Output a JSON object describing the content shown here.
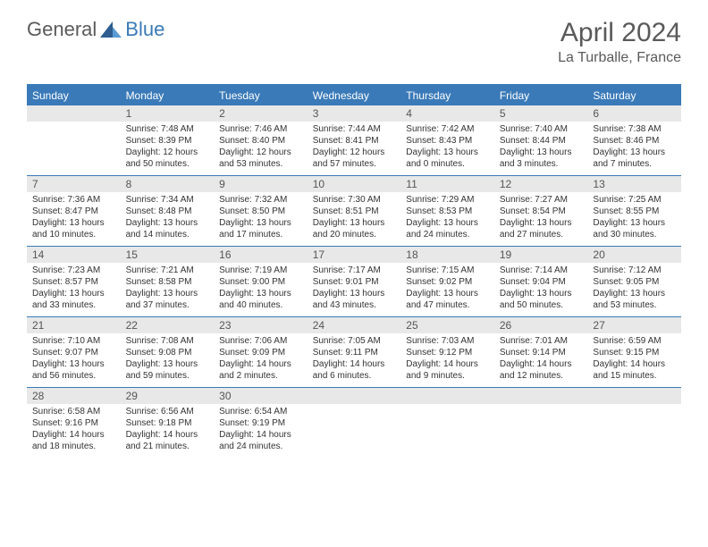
{
  "logo": {
    "general": "General",
    "blue": "Blue"
  },
  "title": "April 2024",
  "location": "La Turballe, France",
  "colors": {
    "accent": "#3a7ab8",
    "header_text": "#ffffff",
    "daynum_bg": "#e8e8e8",
    "body_text": "#333333",
    "title_text": "#5a5a5a"
  },
  "font_sizes": {
    "title": 30,
    "subtitle": 16,
    "day_header": 12,
    "daynum": 12,
    "cell": 10
  },
  "day_names": [
    "Sunday",
    "Monday",
    "Tuesday",
    "Wednesday",
    "Thursday",
    "Friday",
    "Saturday"
  ],
  "weeks": [
    [
      {
        "day": "",
        "sunrise": "",
        "sunset": "",
        "daylight": ""
      },
      {
        "day": "1",
        "sunrise": "Sunrise: 7:48 AM",
        "sunset": "Sunset: 8:39 PM",
        "daylight": "Daylight: 12 hours and 50 minutes."
      },
      {
        "day": "2",
        "sunrise": "Sunrise: 7:46 AM",
        "sunset": "Sunset: 8:40 PM",
        "daylight": "Daylight: 12 hours and 53 minutes."
      },
      {
        "day": "3",
        "sunrise": "Sunrise: 7:44 AM",
        "sunset": "Sunset: 8:41 PM",
        "daylight": "Daylight: 12 hours and 57 minutes."
      },
      {
        "day": "4",
        "sunrise": "Sunrise: 7:42 AM",
        "sunset": "Sunset: 8:43 PM",
        "daylight": "Daylight: 13 hours and 0 minutes."
      },
      {
        "day": "5",
        "sunrise": "Sunrise: 7:40 AM",
        "sunset": "Sunset: 8:44 PM",
        "daylight": "Daylight: 13 hours and 3 minutes."
      },
      {
        "day": "6",
        "sunrise": "Sunrise: 7:38 AM",
        "sunset": "Sunset: 8:46 PM",
        "daylight": "Daylight: 13 hours and 7 minutes."
      }
    ],
    [
      {
        "day": "7",
        "sunrise": "Sunrise: 7:36 AM",
        "sunset": "Sunset: 8:47 PM",
        "daylight": "Daylight: 13 hours and 10 minutes."
      },
      {
        "day": "8",
        "sunrise": "Sunrise: 7:34 AM",
        "sunset": "Sunset: 8:48 PM",
        "daylight": "Daylight: 13 hours and 14 minutes."
      },
      {
        "day": "9",
        "sunrise": "Sunrise: 7:32 AM",
        "sunset": "Sunset: 8:50 PM",
        "daylight": "Daylight: 13 hours and 17 minutes."
      },
      {
        "day": "10",
        "sunrise": "Sunrise: 7:30 AM",
        "sunset": "Sunset: 8:51 PM",
        "daylight": "Daylight: 13 hours and 20 minutes."
      },
      {
        "day": "11",
        "sunrise": "Sunrise: 7:29 AM",
        "sunset": "Sunset: 8:53 PM",
        "daylight": "Daylight: 13 hours and 24 minutes."
      },
      {
        "day": "12",
        "sunrise": "Sunrise: 7:27 AM",
        "sunset": "Sunset: 8:54 PM",
        "daylight": "Daylight: 13 hours and 27 minutes."
      },
      {
        "day": "13",
        "sunrise": "Sunrise: 7:25 AM",
        "sunset": "Sunset: 8:55 PM",
        "daylight": "Daylight: 13 hours and 30 minutes."
      }
    ],
    [
      {
        "day": "14",
        "sunrise": "Sunrise: 7:23 AM",
        "sunset": "Sunset: 8:57 PM",
        "daylight": "Daylight: 13 hours and 33 minutes."
      },
      {
        "day": "15",
        "sunrise": "Sunrise: 7:21 AM",
        "sunset": "Sunset: 8:58 PM",
        "daylight": "Daylight: 13 hours and 37 minutes."
      },
      {
        "day": "16",
        "sunrise": "Sunrise: 7:19 AM",
        "sunset": "Sunset: 9:00 PM",
        "daylight": "Daylight: 13 hours and 40 minutes."
      },
      {
        "day": "17",
        "sunrise": "Sunrise: 7:17 AM",
        "sunset": "Sunset: 9:01 PM",
        "daylight": "Daylight: 13 hours and 43 minutes."
      },
      {
        "day": "18",
        "sunrise": "Sunrise: 7:15 AM",
        "sunset": "Sunset: 9:02 PM",
        "daylight": "Daylight: 13 hours and 47 minutes."
      },
      {
        "day": "19",
        "sunrise": "Sunrise: 7:14 AM",
        "sunset": "Sunset: 9:04 PM",
        "daylight": "Daylight: 13 hours and 50 minutes."
      },
      {
        "day": "20",
        "sunrise": "Sunrise: 7:12 AM",
        "sunset": "Sunset: 9:05 PM",
        "daylight": "Daylight: 13 hours and 53 minutes."
      }
    ],
    [
      {
        "day": "21",
        "sunrise": "Sunrise: 7:10 AM",
        "sunset": "Sunset: 9:07 PM",
        "daylight": "Daylight: 13 hours and 56 minutes."
      },
      {
        "day": "22",
        "sunrise": "Sunrise: 7:08 AM",
        "sunset": "Sunset: 9:08 PM",
        "daylight": "Daylight: 13 hours and 59 minutes."
      },
      {
        "day": "23",
        "sunrise": "Sunrise: 7:06 AM",
        "sunset": "Sunset: 9:09 PM",
        "daylight": "Daylight: 14 hours and 2 minutes."
      },
      {
        "day": "24",
        "sunrise": "Sunrise: 7:05 AM",
        "sunset": "Sunset: 9:11 PM",
        "daylight": "Daylight: 14 hours and 6 minutes."
      },
      {
        "day": "25",
        "sunrise": "Sunrise: 7:03 AM",
        "sunset": "Sunset: 9:12 PM",
        "daylight": "Daylight: 14 hours and 9 minutes."
      },
      {
        "day": "26",
        "sunrise": "Sunrise: 7:01 AM",
        "sunset": "Sunset: 9:14 PM",
        "daylight": "Daylight: 14 hours and 12 minutes."
      },
      {
        "day": "27",
        "sunrise": "Sunrise: 6:59 AM",
        "sunset": "Sunset: 9:15 PM",
        "daylight": "Daylight: 14 hours and 15 minutes."
      }
    ],
    [
      {
        "day": "28",
        "sunrise": "Sunrise: 6:58 AM",
        "sunset": "Sunset: 9:16 PM",
        "daylight": "Daylight: 14 hours and 18 minutes."
      },
      {
        "day": "29",
        "sunrise": "Sunrise: 6:56 AM",
        "sunset": "Sunset: 9:18 PM",
        "daylight": "Daylight: 14 hours and 21 minutes."
      },
      {
        "day": "30",
        "sunrise": "Sunrise: 6:54 AM",
        "sunset": "Sunset: 9:19 PM",
        "daylight": "Daylight: 14 hours and 24 minutes."
      },
      {
        "day": "",
        "sunrise": "",
        "sunset": "",
        "daylight": ""
      },
      {
        "day": "",
        "sunrise": "",
        "sunset": "",
        "daylight": ""
      },
      {
        "day": "",
        "sunrise": "",
        "sunset": "",
        "daylight": ""
      },
      {
        "day": "",
        "sunrise": "",
        "sunset": "",
        "daylight": ""
      }
    ]
  ]
}
